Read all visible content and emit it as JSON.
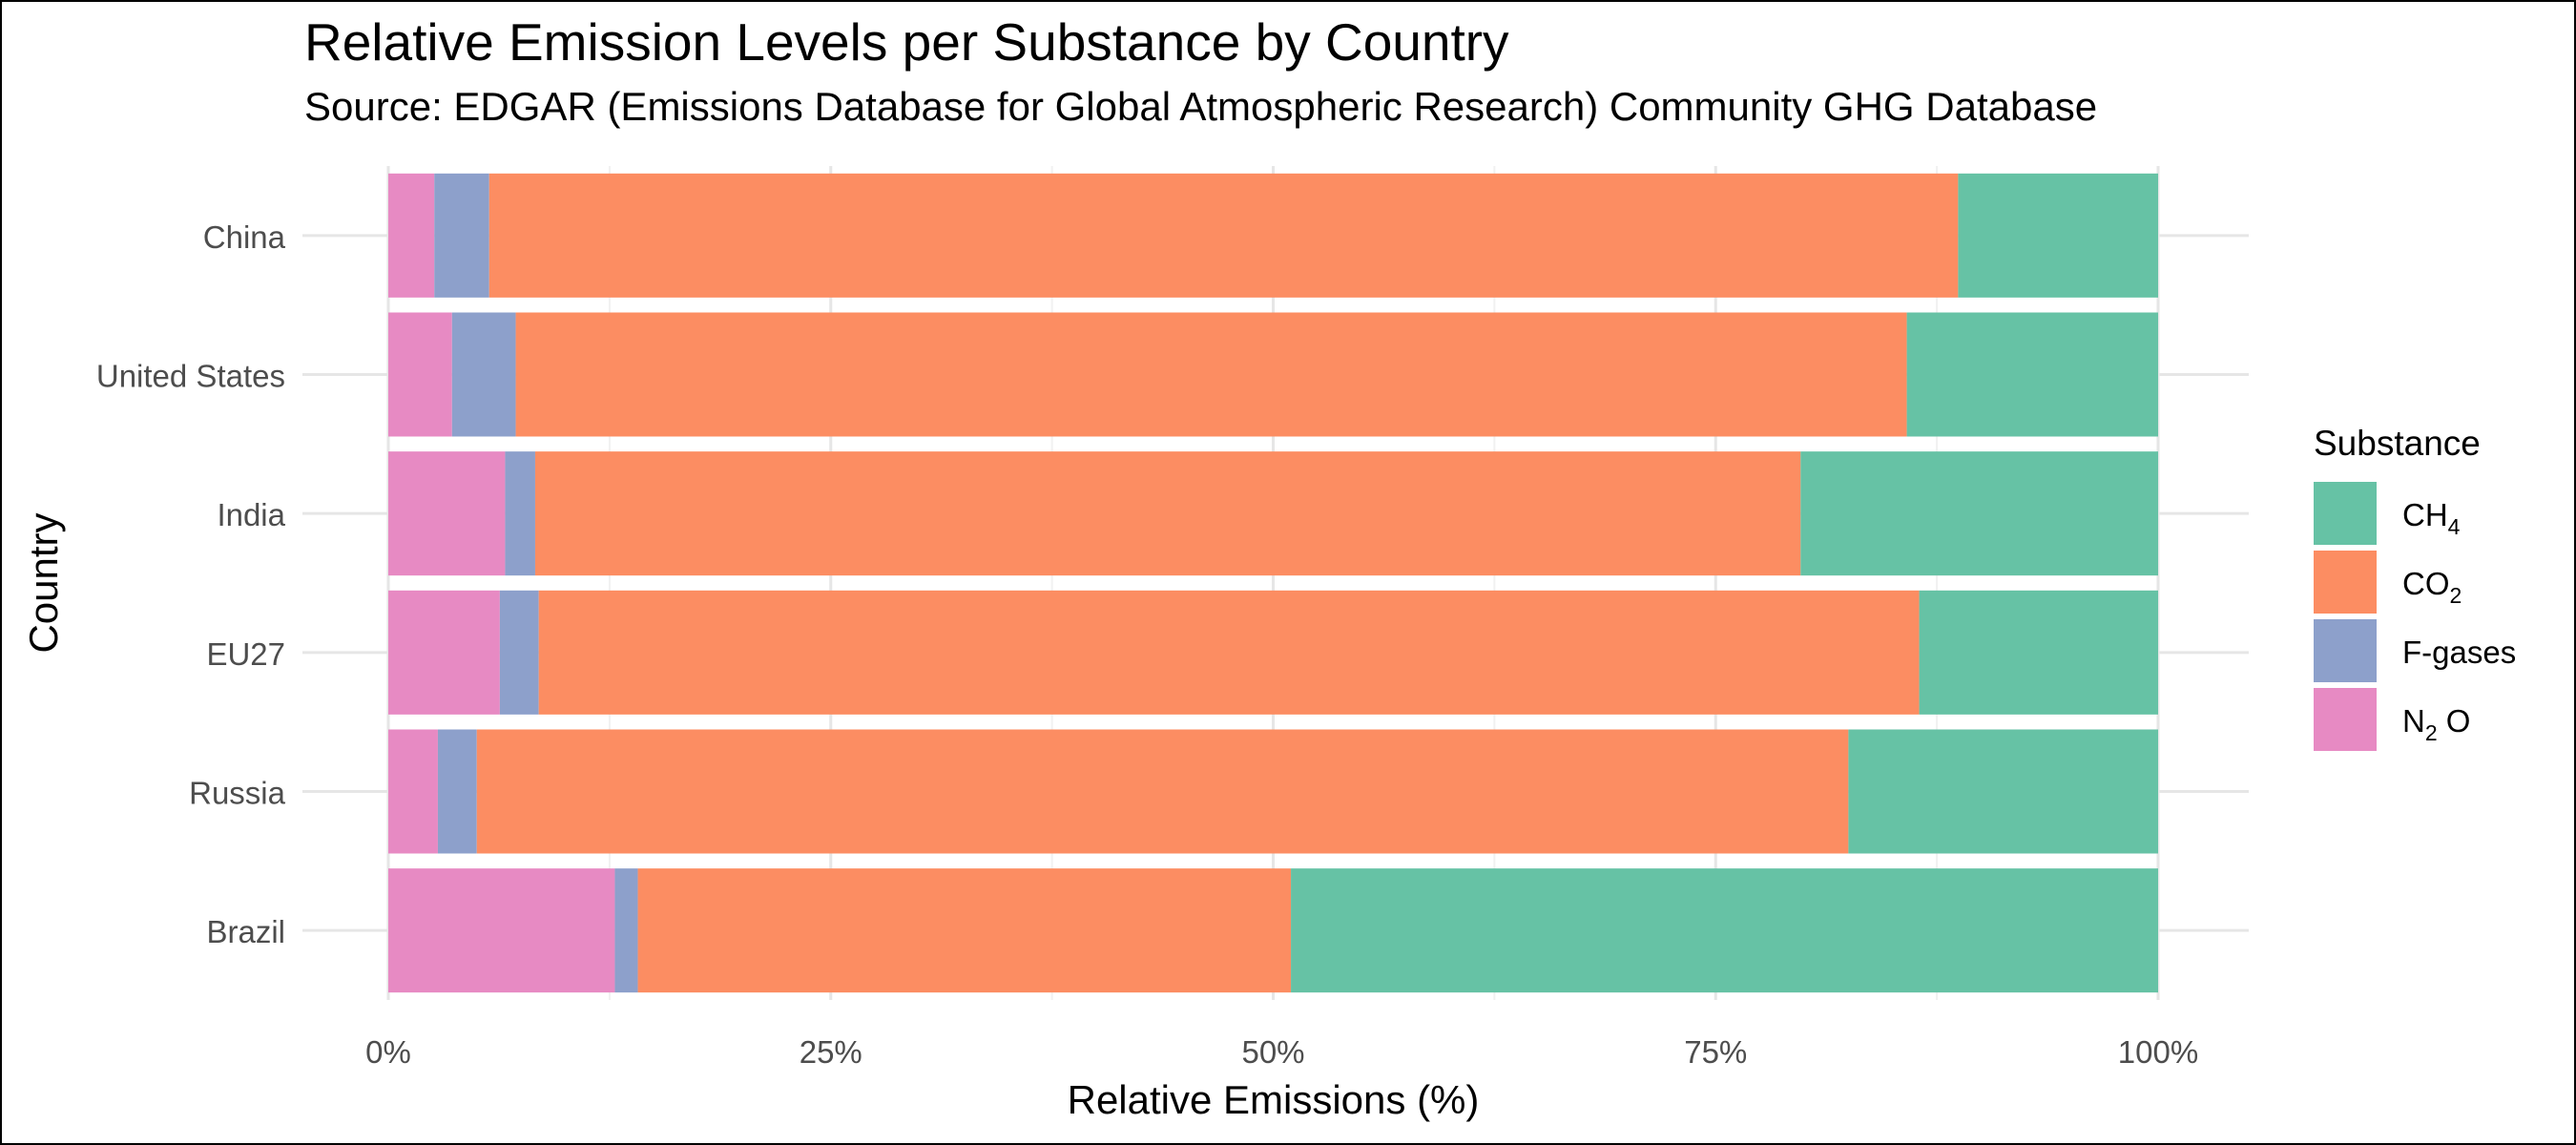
{
  "chart_data": {
    "type": "bar",
    "orientation": "horizontal",
    "stacked": true,
    "title": "Relative Emission Levels per Substance by Country",
    "subtitle": "Source: EDGAR (Emissions Database for Global Atmospheric Research) Community GHG Database",
    "xlabel": "Relative Emissions (%)",
    "ylabel": "Country",
    "xlim": [
      0,
      100
    ],
    "x_ticks": [
      "0%",
      "25%",
      "50%",
      "75%",
      "100%"
    ],
    "categories": [
      "China",
      "United States",
      "India",
      "EU27",
      "Russia",
      "Brazil"
    ],
    "series": [
      {
        "name": "N2 O",
        "label_base": "N",
        "label_sub": "2",
        "label_tail": " O",
        "color": "#E78AC3",
        "values": [
          2.6,
          3.6,
          6.6,
          6.3,
          2.8,
          12.8
        ]
      },
      {
        "name": "F-gases",
        "label_base": "F-gases",
        "label_sub": "",
        "label_tail": "",
        "color": "#8DA0CB",
        "values": [
          3.1,
          3.6,
          1.7,
          2.2,
          2.2,
          1.3
        ]
      },
      {
        "name": "CO2",
        "label_base": "CO",
        "label_sub": "2",
        "label_tail": "",
        "color": "#FC8D62",
        "values": [
          83.0,
          78.6,
          71.5,
          78.0,
          77.5,
          36.9
        ]
      },
      {
        "name": "CH4",
        "label_base": "CH",
        "label_sub": "4",
        "label_tail": "",
        "color": "#66C2A5",
        "values": [
          11.3,
          14.2,
          20.2,
          13.5,
          17.5,
          49.0
        ]
      }
    ],
    "legend": {
      "title": "Substance",
      "position": "right",
      "order": [
        "CH4",
        "CO2",
        "F-gases",
        "N2 O"
      ]
    },
    "grid": true
  }
}
